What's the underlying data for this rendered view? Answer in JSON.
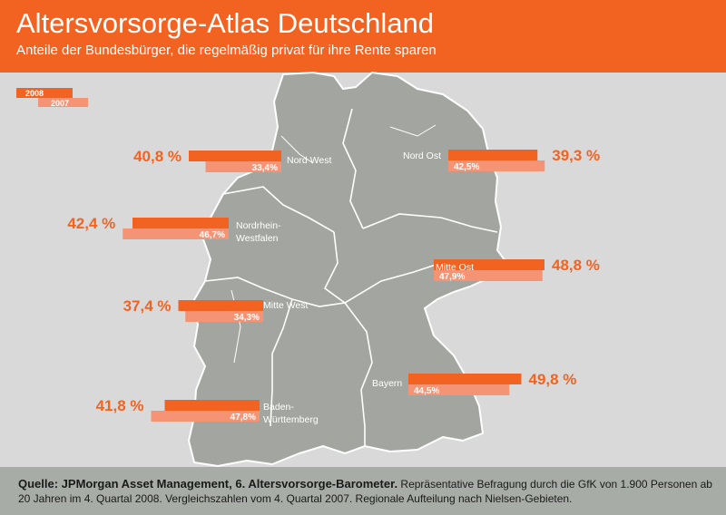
{
  "header": {
    "title": "Altersvorsorge-Atlas Deutschland",
    "subtitle": "Anteile der Bundesbürger, die regelmäßig privat für ihre Rente sparen"
  },
  "colors": {
    "header": "#f26322",
    "bar_2008": "#f26322",
    "bar_2007": "#f59475",
    "value_text": "#f26322",
    "map_fill": "#a3a6a0",
    "background": "#d9d9d9"
  },
  "footer": {
    "source": "Quelle: JPMorgan Asset Management, 6. Altersvorsorge-Barometer.",
    "note": "Repräsentative Befragung durch die GfK von 1.900 Personen ab 20 Jahren im 4. Quartal 2008. Vergleichszahlen vom 4. Quartal 2007. Regionale Aufteilung nach Nielsen-Gebieten."
  },
  "chart_data": {
    "type": "bar",
    "legend": [
      "2008",
      "2007"
    ],
    "legend_position": "top-left",
    "unit": "%",
    "series": [
      {
        "name": "2008",
        "values": [
          40.8,
          39.3,
          42.4,
          48.8,
          37.4,
          49.8,
          41.8
        ]
      },
      {
        "name": "2007",
        "values": [
          33.4,
          42.5,
          46.7,
          47.9,
          34.3,
          44.5,
          47.8
        ]
      }
    ],
    "regions": [
      {
        "name": "Nord West",
        "label_2008": "40,8 %",
        "label_2007": "33,4%"
      },
      {
        "name": "Nord Ost",
        "label_2008": "39,3 %",
        "label_2007": "42,5%"
      },
      {
        "name": "Nordrhein-Westfalen",
        "name_lines": [
          "Nordrhein-",
          "Westfalen"
        ],
        "label_2008": "42,4 %",
        "label_2007": "46,7%"
      },
      {
        "name": "Mitte Ost",
        "label_2008": "48,8 %",
        "label_2007": "47,9%"
      },
      {
        "name": "Mitte West",
        "label_2008": "37,4 %",
        "label_2007": "34,3%"
      },
      {
        "name": "Bayern",
        "label_2008": "49,8 %",
        "label_2007": "44,5%"
      },
      {
        "name": "Baden-Württemberg",
        "name_lines": [
          "Baden-",
          "Württemberg"
        ],
        "label_2008": "41,8 %",
        "label_2007": "47,8%"
      }
    ]
  }
}
